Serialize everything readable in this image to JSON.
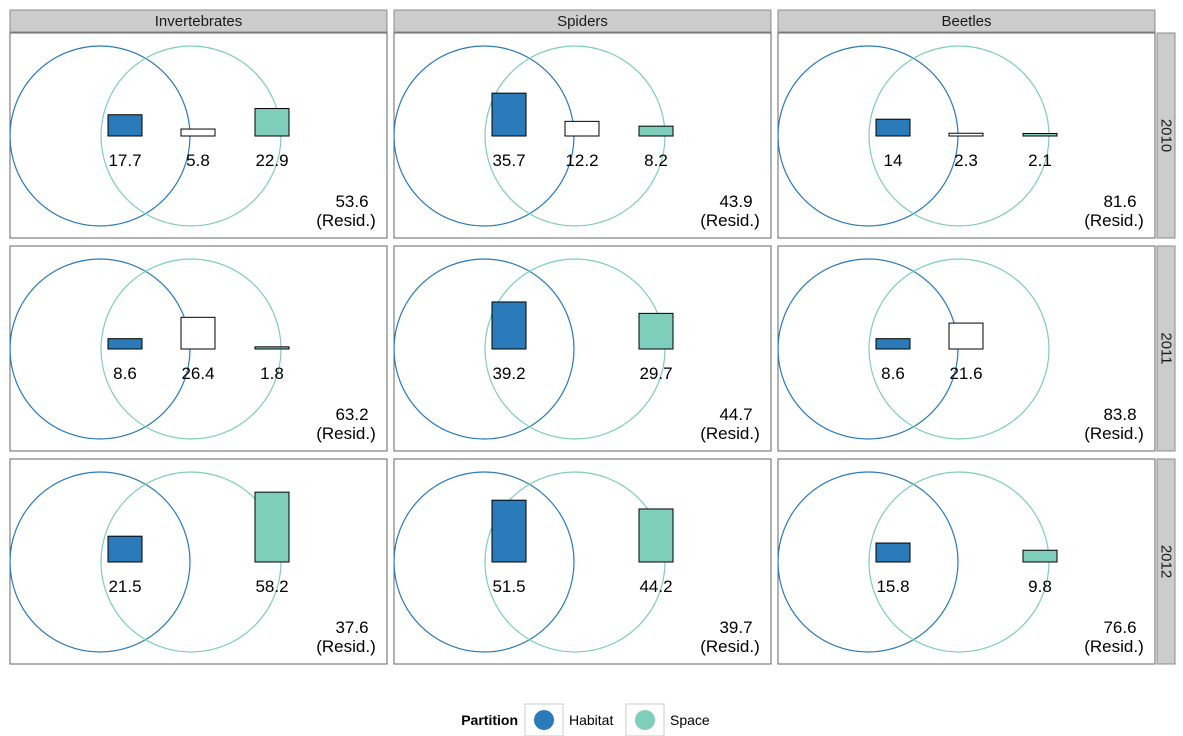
{
  "chart_data": {
    "type": "venn-facet",
    "columns": [
      "Invertebrates",
      "Spiders",
      "Beetles"
    ],
    "rows": [
      "2010",
      "2011",
      "2012"
    ],
    "residual_suffix": "(Resid.)",
    "panels": [
      {
        "column": "Invertebrates",
        "row": "2010",
        "habitat": "17.7",
        "shared": "5.8",
        "space": "22.9",
        "residual": "53.6"
      },
      {
        "column": "Spiders",
        "row": "2010",
        "habitat": "35.7",
        "shared": "12.2",
        "space": "8.2",
        "residual": "43.9"
      },
      {
        "column": "Beetles",
        "row": "2010",
        "habitat": "14",
        "shared": "2.3",
        "space": "2.1",
        "residual": "81.6"
      },
      {
        "column": "Invertebrates",
        "row": "2011",
        "habitat": "8.6",
        "shared": "26.4",
        "space": "1.8",
        "residual": "63.2"
      },
      {
        "column": "Spiders",
        "row": "2011",
        "habitat": "39.2",
        "shared": null,
        "space": "29.7",
        "residual": "44.7"
      },
      {
        "column": "Beetles",
        "row": "2011",
        "habitat": "8.6",
        "shared": "21.6",
        "space": null,
        "residual": "83.8"
      },
      {
        "column": "Invertebrates",
        "row": "2012",
        "habitat": "21.5",
        "shared": null,
        "space": "58.2",
        "residual": "37.6"
      },
      {
        "column": "Spiders",
        "row": "2012",
        "habitat": "51.5",
        "shared": null,
        "space": "44.2",
        "residual": "39.7"
      },
      {
        "column": "Beetles",
        "row": "2012",
        "habitat": "15.8",
        "shared": null,
        "space": "9.8",
        "residual": "76.6"
      }
    ],
    "legend": {
      "title": "Partition",
      "items": [
        {
          "label": "Habitat",
          "color": "#2b7bba"
        },
        {
          "label": "Space",
          "color": "#7fcdbb"
        }
      ]
    },
    "colors": {
      "habitat": "#2b7bba",
      "space": "#7fcdbb",
      "shared": "#ffffff",
      "strip": "#cccccc"
    }
  }
}
